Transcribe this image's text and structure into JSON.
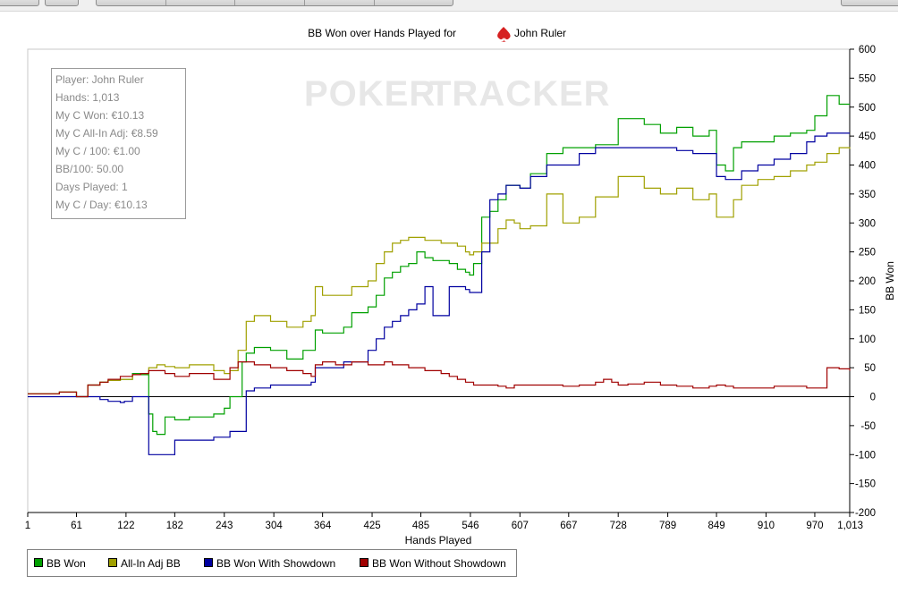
{
  "chart_data": {
    "type": "line",
    "title": "BB Won over Hands Played for",
    "player_name": "John Ruler",
    "watermark": {
      "left": "POKER",
      "right": "TRACKER"
    },
    "xlabel": "Hands Played",
    "ylabel": "BB Won",
    "xlim": [
      1,
      1013
    ],
    "ylim": [
      -200,
      600
    ],
    "x_ticks": [
      1,
      61,
      122,
      182,
      243,
      304,
      364,
      425,
      485,
      546,
      607,
      667,
      728,
      789,
      849,
      910,
      970,
      1013
    ],
    "x_tick_labels": [
      "1",
      "61",
      "122",
      "182",
      "243",
      "304",
      "364",
      "425",
      "485",
      "546",
      "607",
      "667",
      "728",
      "789",
      "849",
      "910",
      "970",
      "1,013"
    ],
    "y_ticks": [
      -200,
      -150,
      -100,
      -50,
      0,
      50,
      100,
      150,
      200,
      250,
      300,
      350,
      400,
      450,
      500,
      550,
      600
    ],
    "grid": false,
    "legend_position": "bottom",
    "info_box": [
      "Player: John Ruler",
      "Hands: 1,013",
      "My C Won: €10.13",
      "My C All-In Adj: €8.59",
      "My C / 100: €1.00",
      "BB/100: 50.00",
      "Days Played: 1",
      "My C / Day: €10.13"
    ],
    "series": [
      {
        "name": "BB Won",
        "color": "#00a000",
        "x": [
          1,
          40,
          61,
          75,
          90,
          100,
          115,
          130,
          140,
          150,
          155,
          160,
          170,
          182,
          200,
          230,
          243,
          250,
          265,
          270,
          280,
          300,
          320,
          340,
          350,
          355,
          364,
          380,
          390,
          400,
          420,
          430,
          440,
          450,
          460,
          470,
          480,
          490,
          500,
          510,
          520,
          530,
          540,
          545,
          550,
          560,
          570,
          580,
          590,
          600,
          607,
          620,
          640,
          660,
          680,
          700,
          728,
          760,
          780,
          800,
          820,
          840,
          849,
          860,
          870,
          880,
          900,
          920,
          940,
          960,
          970,
          985,
          1000,
          1013
        ],
        "y": [
          5,
          8,
          0,
          20,
          25,
          28,
          30,
          40,
          38,
          -30,
          -60,
          -65,
          -35,
          -40,
          -35,
          -30,
          -20,
          0,
          60,
          75,
          85,
          80,
          65,
          80,
          80,
          115,
          110,
          110,
          120,
          145,
          155,
          175,
          205,
          215,
          225,
          230,
          250,
          240,
          235,
          235,
          230,
          220,
          215,
          210,
          230,
          310,
          320,
          340,
          365,
          365,
          360,
          385,
          420,
          430,
          430,
          435,
          480,
          470,
          455,
          465,
          450,
          460,
          400,
          390,
          430,
          440,
          440,
          450,
          455,
          460,
          485,
          520,
          505,
          505
        ]
      },
      {
        "name": "All-In Adj BB",
        "color": "#a0a000",
        "x": [
          1,
          40,
          61,
          75,
          90,
          100,
          115,
          130,
          140,
          150,
          160,
          170,
          182,
          200,
          230,
          243,
          250,
          260,
          270,
          280,
          300,
          320,
          340,
          350,
          355,
          364,
          380,
          390,
          400,
          420,
          430,
          440,
          450,
          460,
          470,
          480,
          490,
          500,
          510,
          520,
          530,
          540,
          545,
          550,
          560,
          580,
          590,
          600,
          607,
          620,
          640,
          660,
          670,
          680,
          700,
          728,
          760,
          780,
          800,
          820,
          840,
          849,
          860,
          870,
          880,
          900,
          920,
          940,
          960,
          970,
          985,
          1000,
          1013
        ],
        "y": [
          5,
          8,
          0,
          20,
          25,
          28,
          30,
          38,
          40,
          50,
          55,
          52,
          50,
          55,
          45,
          40,
          45,
          80,
          130,
          140,
          130,
          120,
          130,
          140,
          190,
          175,
          175,
          175,
          190,
          200,
          230,
          250,
          265,
          270,
          275,
          275,
          270,
          270,
          265,
          265,
          260,
          250,
          245,
          250,
          265,
          290,
          305,
          300,
          290,
          295,
          350,
          300,
          300,
          310,
          345,
          380,
          360,
          350,
          360,
          340,
          350,
          310,
          310,
          340,
          365,
          375,
          380,
          390,
          400,
          405,
          420,
          430,
          428
        ]
      },
      {
        "name": "BB Won With Showdown",
        "color": "#0000a0",
        "x": [
          1,
          61,
          90,
          100,
          115,
          120,
          130,
          140,
          150,
          160,
          170,
          182,
          200,
          230,
          243,
          250,
          260,
          270,
          280,
          300,
          320,
          340,
          350,
          355,
          364,
          380,
          390,
          400,
          420,
          430,
          440,
          450,
          460,
          470,
          480,
          490,
          500,
          510,
          520,
          530,
          540,
          545,
          550,
          560,
          570,
          580,
          590,
          600,
          607,
          620,
          640,
          660,
          680,
          700,
          728,
          760,
          770,
          780,
          800,
          820,
          840,
          849,
          860,
          870,
          880,
          900,
          920,
          940,
          960,
          970,
          985,
          1000,
          1013
        ],
        "y": [
          0,
          0,
          -5,
          -8,
          -10,
          -8,
          0,
          0,
          -100,
          -100,
          -100,
          -75,
          -75,
          -70,
          -70,
          -60,
          -60,
          10,
          15,
          20,
          20,
          20,
          25,
          50,
          50,
          50,
          60,
          60,
          80,
          100,
          120,
          130,
          140,
          150,
          160,
          190,
          140,
          140,
          190,
          190,
          185,
          180,
          180,
          250,
          340,
          350,
          365,
          365,
          360,
          380,
          400,
          400,
          420,
          430,
          430,
          430,
          430,
          430,
          425,
          420,
          420,
          380,
          375,
          375,
          390,
          400,
          410,
          420,
          440,
          450,
          455,
          455,
          455
        ]
      },
      {
        "name": "BB Won Without Showdown",
        "color": "#a00000",
        "x": [
          1,
          40,
          61,
          75,
          90,
          100,
          115,
          130,
          140,
          150,
          160,
          170,
          182,
          200,
          230,
          243,
          250,
          260,
          270,
          280,
          300,
          320,
          340,
          350,
          355,
          364,
          380,
          390,
          400,
          420,
          430,
          440,
          450,
          460,
          470,
          480,
          490,
          500,
          510,
          520,
          530,
          540,
          550,
          560,
          570,
          580,
          590,
          600,
          620,
          640,
          660,
          680,
          700,
          710,
          720,
          728,
          740,
          760,
          780,
          800,
          820,
          840,
          849,
          860,
          870,
          880,
          900,
          920,
          940,
          960,
          970,
          985,
          1000,
          1013
        ],
        "y": [
          5,
          8,
          0,
          20,
          25,
          30,
          35,
          38,
          40,
          45,
          45,
          40,
          35,
          40,
          30,
          30,
          50,
          60,
          60,
          55,
          50,
          45,
          40,
          35,
          55,
          60,
          55,
          55,
          60,
          55,
          55,
          60,
          55,
          55,
          50,
          50,
          45,
          45,
          40,
          35,
          30,
          25,
          20,
          20,
          20,
          18,
          15,
          20,
          20,
          20,
          18,
          20,
          25,
          30,
          25,
          20,
          22,
          25,
          20,
          18,
          15,
          18,
          20,
          18,
          15,
          15,
          15,
          18,
          18,
          15,
          15,
          50,
          48,
          45
        ]
      }
    ]
  }
}
